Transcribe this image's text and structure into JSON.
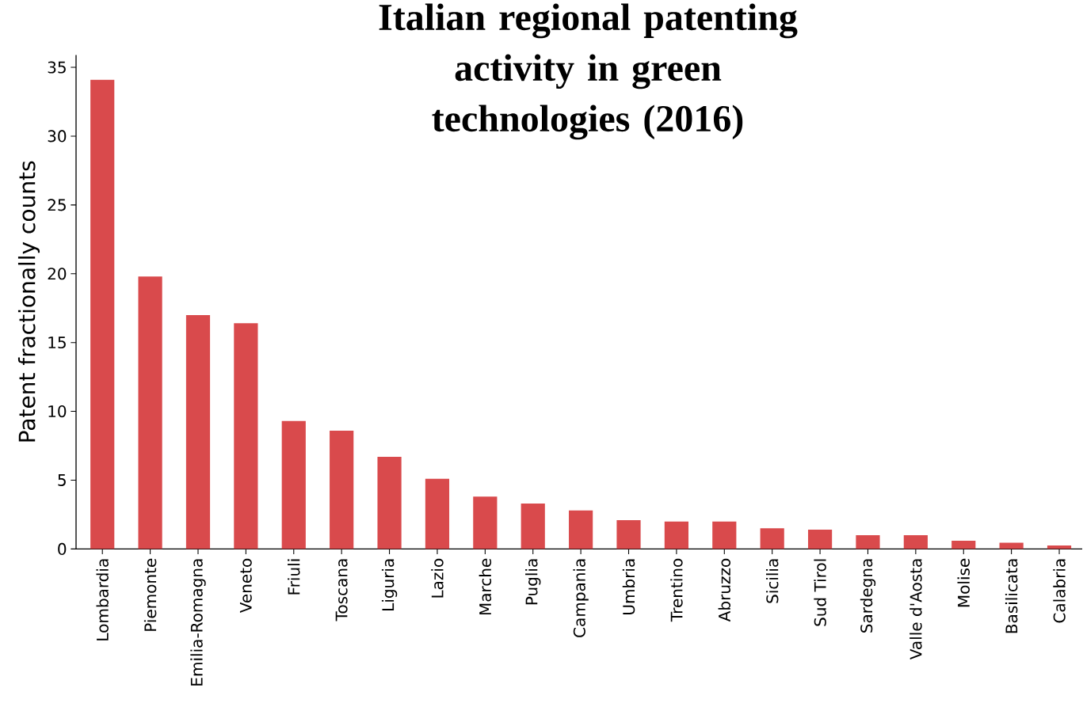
{
  "chart_data": {
    "type": "bar",
    "title": "Italian regional patenting activity in green technologies (2016)",
    "ylabel": "Patent fractionally counts",
    "categories": [
      "Lombardia",
      "Piemonte",
      "Emilia-Romagna",
      "Veneto",
      "Friuli",
      "Toscana",
      "Liguria",
      "Lazio",
      "Marche",
      "Puglia",
      "Campania",
      "Umbria",
      "Trentino",
      "Abruzzo",
      "Sicilia",
      "Sud Tirol",
      "Sardegna",
      "Valle d'Aosta",
      "Molise",
      "Basilicata",
      "Calabria"
    ],
    "values": [
      34.1,
      19.8,
      17.0,
      16.4,
      9.3,
      8.6,
      6.7,
      5.1,
      3.8,
      3.3,
      2.8,
      2.1,
      2.0,
      2.0,
      1.5,
      1.4,
      1.0,
      1.0,
      0.6,
      0.45,
      0.25
    ],
    "color": "#d94a4c",
    "ylim": [
      0,
      35.9
    ],
    "yticks": [
      0,
      5,
      10,
      15,
      20,
      25,
      30,
      35
    ],
    "grid": false
  }
}
